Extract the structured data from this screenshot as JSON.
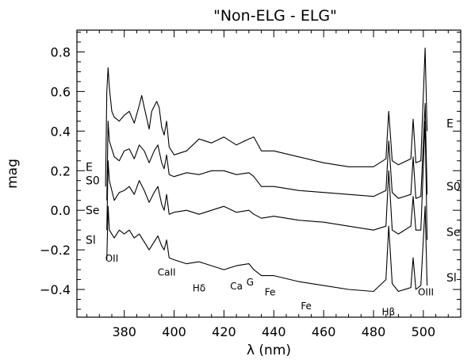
{
  "chart_data": {
    "type": "line",
    "title": "\"Non-ELG - ELG\"",
    "xlabel": "λ (nm)",
    "ylabel": "mag",
    "xlim": [
      361,
      515
    ],
    "ylim": [
      -0.54,
      0.91
    ],
    "xticks": [
      380,
      400,
      420,
      440,
      460,
      480,
      500
    ],
    "xtick_labels": [
      "380",
      "400",
      "420",
      "440",
      "460",
      "480",
      "500"
    ],
    "yticks": [
      -0.4,
      -0.2,
      0.0,
      0.2,
      0.4,
      0.6,
      0.8
    ],
    "ytick_labels": [
      "−0.4",
      "−0.2",
      "0.0",
      "0.2",
      "0.4",
      "0.6",
      "0.8"
    ],
    "grid": false,
    "legend": "none",
    "series": [
      {
        "name": "E",
        "label_left": "E",
        "label_right": "E",
        "x": [
          372.5,
          373,
          373.5,
          374,
          375,
          376,
          378,
          380,
          382,
          384,
          386,
          387,
          388,
          390,
          391,
          393,
          394,
          395,
          396,
          397,
          398,
          400,
          405,
          410,
          415,
          420,
          425,
          430,
          432,
          435,
          440,
          450,
          460,
          470,
          480,
          485,
          486.1,
          487.5,
          490,
          495,
          495.9,
          497,
          499,
          500.7,
          501.5
        ],
        "y": [
          0.12,
          0.6,
          0.72,
          0.62,
          0.5,
          0.47,
          0.45,
          0.48,
          0.5,
          0.44,
          0.53,
          0.58,
          0.52,
          0.41,
          0.5,
          0.55,
          0.52,
          0.42,
          0.38,
          0.45,
          0.32,
          0.28,
          0.3,
          0.36,
          0.34,
          0.37,
          0.33,
          0.36,
          0.37,
          0.3,
          0.3,
          0.27,
          0.24,
          0.22,
          0.22,
          0.26,
          0.5,
          0.25,
          0.23,
          0.26,
          0.46,
          0.24,
          0.25,
          0.82,
          0.4
        ]
      },
      {
        "name": "S0",
        "label_left": "S0",
        "label_right": "S0",
        "x": [
          373,
          373.5,
          374,
          376,
          378,
          380,
          382,
          384,
          386,
          388,
          390,
          392,
          393.5,
          395,
          396,
          397,
          398,
          400,
          405,
          410,
          415,
          420,
          425,
          430,
          432,
          435,
          440,
          450,
          460,
          470,
          480,
          485,
          486.1,
          487.5,
          490,
          495,
          495.9,
          497,
          499,
          500.7,
          501.5
        ],
        "y": [
          0.05,
          0.45,
          0.35,
          0.27,
          0.25,
          0.3,
          0.31,
          0.26,
          0.33,
          0.3,
          0.24,
          0.3,
          0.33,
          0.24,
          0.21,
          0.28,
          0.18,
          0.17,
          0.19,
          0.18,
          0.2,
          0.2,
          0.18,
          0.19,
          0.17,
          0.12,
          0.12,
          0.1,
          0.09,
          0.08,
          0.07,
          0.1,
          0.35,
          0.09,
          0.06,
          0.08,
          0.27,
          0.06,
          0.07,
          0.54,
          0.08
        ]
      },
      {
        "name": "Se",
        "label_left": "Se",
        "label_right": "Se",
        "x": [
          373,
          373.5,
          374,
          376,
          378,
          380,
          382,
          384,
          386,
          388,
          390,
          392,
          393.5,
          395,
          396,
          397,
          398,
          400,
          405,
          410,
          415,
          420,
          425,
          430,
          432,
          435,
          440,
          450,
          460,
          470,
          480,
          485,
          486.1,
          487.5,
          490,
          495,
          495.9,
          497,
          499,
          500.7,
          501.5
        ],
        "y": [
          -0.1,
          0.25,
          0.15,
          0.05,
          0.09,
          0.1,
          0.12,
          0.08,
          0.15,
          0.1,
          0.04,
          0.09,
          0.12,
          0.03,
          0.0,
          0.08,
          -0.02,
          -0.01,
          0.0,
          -0.02,
          0.0,
          0.02,
          -0.01,
          0.0,
          -0.02,
          -0.04,
          -0.03,
          -0.05,
          -0.06,
          -0.08,
          -0.1,
          -0.08,
          0.2,
          -0.1,
          -0.12,
          -0.08,
          0.07,
          -0.1,
          -0.1,
          0.45,
          -0.15
        ]
      },
      {
        "name": "Sl",
        "label_left": "Sl",
        "label_right": "Sl",
        "x": [
          373,
          373.5,
          374,
          376,
          378,
          380,
          382,
          384,
          386,
          388,
          390,
          392,
          393.5,
          395,
          396,
          397,
          398,
          400,
          405,
          410,
          415,
          420,
          425,
          430,
          432,
          435,
          440,
          450,
          460,
          470,
          480,
          485,
          486.1,
          487.5,
          490,
          495,
          495.9,
          497,
          499,
          500.7,
          501.5
        ],
        "y": [
          -0.25,
          0.02,
          -0.1,
          -0.14,
          -0.1,
          -0.12,
          -0.1,
          -0.14,
          -0.12,
          -0.16,
          -0.2,
          -0.16,
          -0.13,
          -0.18,
          -0.2,
          -0.15,
          -0.24,
          -0.25,
          -0.27,
          -0.26,
          -0.28,
          -0.3,
          -0.28,
          -0.27,
          -0.3,
          -0.33,
          -0.33,
          -0.36,
          -0.38,
          -0.4,
          -0.41,
          -0.35,
          -0.08,
          -0.37,
          -0.41,
          -0.39,
          -0.24,
          -0.4,
          -0.38,
          0.02,
          -0.38
        ]
      }
    ],
    "annotations": [
      {
        "text": "OII",
        "x": 375,
        "y": -0.26
      },
      {
        "text": "CaII",
        "x": 397,
        "y": -0.33
      },
      {
        "text": "Hδ",
        "x": 410,
        "y": -0.41
      },
      {
        "text": "Ca",
        "x": 425,
        "y": -0.4
      },
      {
        "text": "G",
        "x": 430.5,
        "y": -0.38
      },
      {
        "text": "Fe",
        "x": 438.5,
        "y": -0.43
      },
      {
        "text": "Fe",
        "x": 453,
        "y": -0.5
      },
      {
        "text": "Hβ",
        "x": 486,
        "y": -0.53
      },
      {
        "text": "OIII",
        "x": 501,
        "y": -0.43
      }
    ]
  }
}
